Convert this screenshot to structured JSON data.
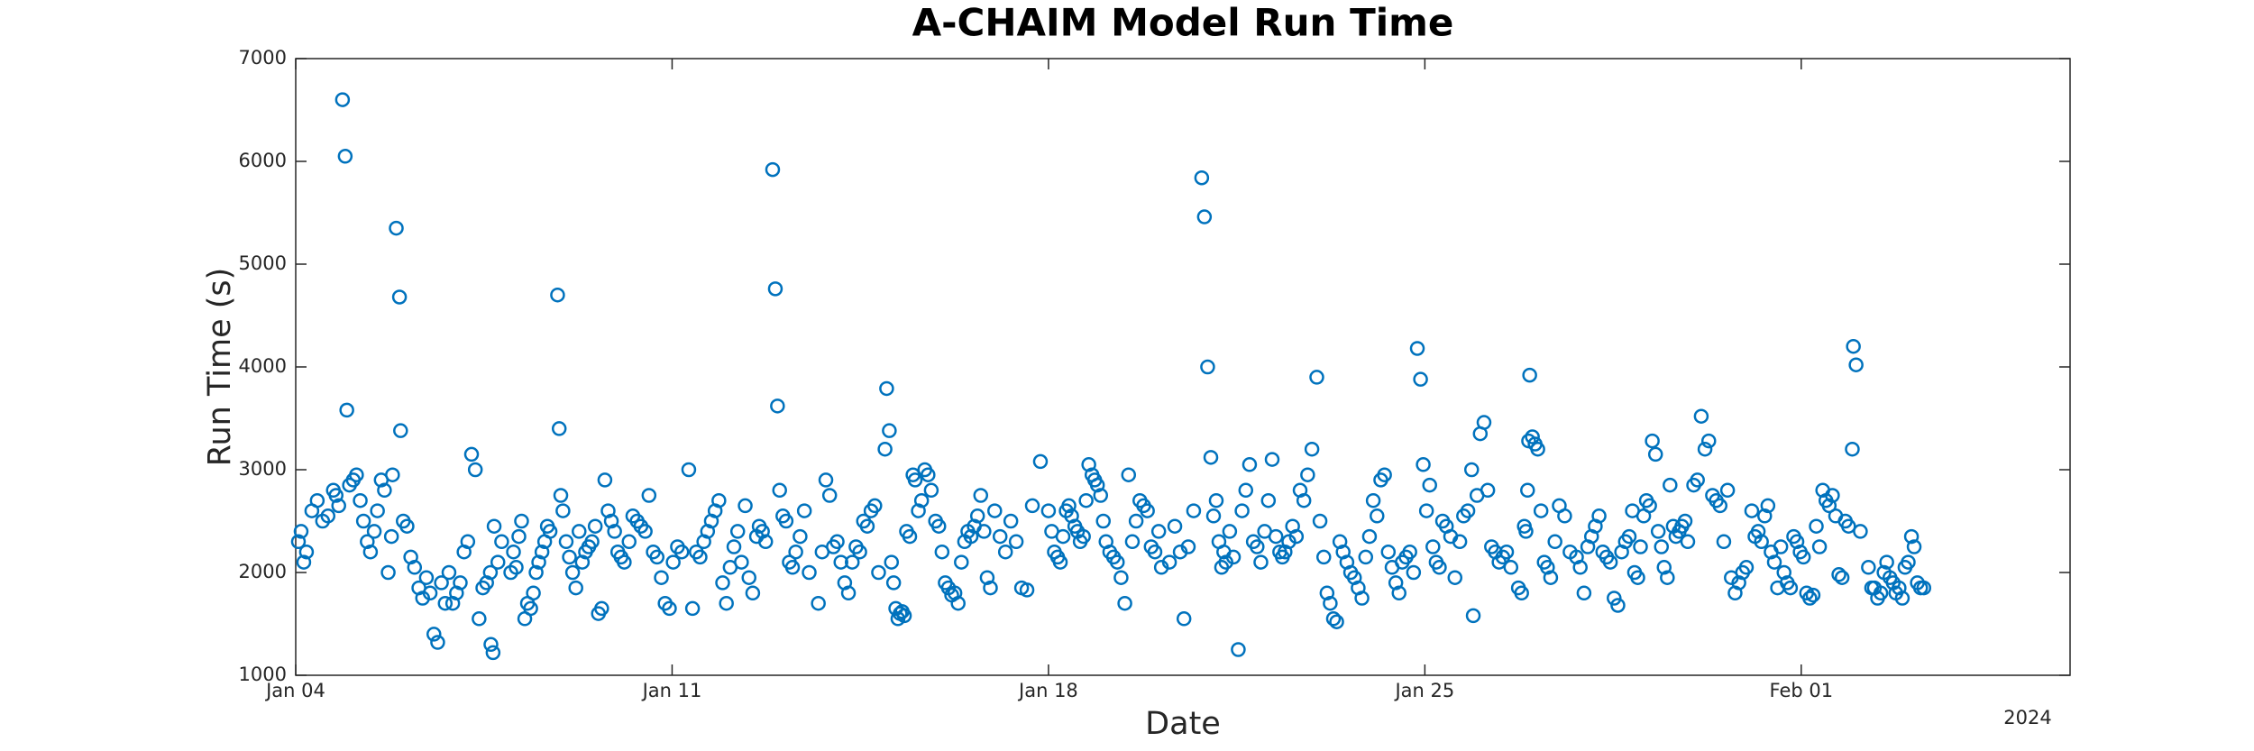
{
  "chart_data": {
    "type": "scatter",
    "title": "A-CHAIM Model Run Time",
    "x_label": "Date",
    "y_label": "Run Time (s)",
    "x_year_label": "2024",
    "color": "#0072bd",
    "xlim": [
      0,
      33
    ],
    "xticks": [
      {
        "value": 0,
        "label": "Jan 04"
      },
      {
        "value": 7,
        "label": "Jan 11"
      },
      {
        "value": 14,
        "label": "Jan 18"
      },
      {
        "value": 21,
        "label": "Jan 25"
      },
      {
        "value": 28,
        "label": "Feb 01"
      }
    ],
    "ylim": [
      1000,
      7000
    ],
    "yticks": [
      1000,
      2000,
      3000,
      4000,
      5000,
      6000,
      7000
    ],
    "grid": false,
    "x": [
      0.05,
      0.1,
      0.15,
      0.2,
      0.3,
      0.4,
      0.5,
      0.6,
      0.7,
      0.75,
      0.8,
      0.87,
      0.92,
      0.95,
      1.0,
      1.07,
      1.13,
      1.2,
      1.26,
      1.33,
      1.39,
      1.46,
      1.52,
      1.59,
      1.65,
      1.72,
      1.78,
      1.8,
      1.87,
      1.93,
      1.95,
      2.0,
      2.07,
      2.14,
      2.21,
      2.29,
      2.36,
      2.43,
      2.5,
      2.57,
      2.64,
      2.71,
      2.78,
      2.85,
      2.92,
      2.99,
      3.06,
      3.13,
      3.2,
      3.27,
      3.34,
      3.41,
      3.48,
      3.55,
      3.62,
      3.69,
      3.76,
      3.83,
      3.63,
      3.67,
      4.0,
      4.05,
      4.1,
      4.15,
      4.2,
      4.26,
      4.31,
      4.37,
      4.42,
      4.47,
      4.52,
      4.58,
      4.63,
      4.68,
      4.73,
      4.87,
      4.9,
      4.93,
      4.97,
      5.03,
      5.09,
      5.15,
      5.21,
      5.27,
      5.33,
      5.39,
      5.45,
      5.51,
      5.57,
      5.63,
      5.69,
      5.75,
      5.81,
      5.87,
      5.93,
      5.99,
      6.05,
      6.11,
      6.2,
      6.27,
      6.35,
      6.42,
      6.5,
      6.57,
      6.65,
      6.72,
      6.8,
      6.87,
      6.95,
      7.02,
      7.1,
      7.18,
      7.31,
      7.38,
      7.45,
      7.52,
      7.59,
      7.66,
      7.73,
      7.8,
      7.87,
      7.94,
      8.01,
      8.08,
      8.15,
      8.22,
      8.29,
      8.36,
      8.43,
      8.5,
      8.57,
      8.62,
      8.68,
      8.74,
      8.87,
      8.92,
      8.96,
      9.0,
      9.06,
      9.12,
      9.18,
      9.24,
      9.3,
      9.38,
      9.46,
      9.55,
      9.72,
      9.79,
      9.86,
      9.93,
      10.0,
      10.07,
      10.14,
      10.21,
      10.28,
      10.35,
      10.42,
      10.49,
      10.56,
      10.63,
      10.7,
      10.77,
      10.84,
      10.96,
      10.99,
      11.04,
      11.08,
      11.12,
      11.16,
      11.2,
      11.24,
      11.28,
      11.32,
      11.36,
      11.42,
      11.48,
      11.52,
      11.58,
      11.64,
      11.7,
      11.76,
      11.82,
      11.9,
      11.96,
      12.02,
      12.08,
      12.14,
      12.2,
      12.26,
      12.32,
      12.38,
      12.44,
      12.5,
      12.56,
      12.62,
      12.68,
      12.74,
      12.8,
      12.86,
      12.92,
      13.0,
      13.1,
      13.2,
      13.3,
      13.4,
      13.5,
      13.6,
      13.7,
      13.85,
      14.0,
      14.06,
      14.11,
      14.17,
      14.22,
      14.27,
      14.33,
      14.38,
      14.43,
      14.49,
      14.54,
      14.59,
      14.65,
      14.7,
      14.75,
      14.81,
      14.86,
      14.91,
      14.97,
      15.02,
      15.07,
      15.14,
      15.21,
      15.28,
      15.35,
      15.42,
      15.49,
      15.56,
      15.63,
      15.7,
      15.77,
      15.84,
      15.91,
      15.98,
      16.05,
      16.1,
      16.25,
      16.35,
      16.45,
      16.52,
      16.6,
      16.7,
      16.85,
      16.9,
      16.96,
      17.02,
      17.07,
      17.12,
      17.17,
      17.22,
      17.26,
      17.3,
      17.37,
      17.44,
      17.53,
      17.6,
      17.67,
      17.74,
      17.81,
      17.88,
      17.95,
      18.02,
      18.09,
      18.16,
      18.23,
      18.3,
      18.35,
      18.4,
      18.47,
      18.54,
      18.61,
      18.68,
      18.75,
      18.82,
      18.9,
      18.99,
      19.05,
      19.12,
      19.18,
      19.24,
      19.3,
      19.36,
      19.42,
      19.48,
      19.55,
      19.62,
      19.69,
      19.76,
      19.83,
      19.9,
      19.97,
      20.04,
      20.11,
      20.18,
      20.25,
      20.32,
      20.39,
      20.46,
      20.52,
      20.58,
      20.65,
      20.72,
      20.79,
      20.86,
      20.92,
      20.97,
      21.03,
      21.09,
      21.15,
      21.21,
      21.27,
      21.33,
      21.4,
      21.48,
      21.56,
      21.65,
      21.72,
      21.8,
      21.87,
      21.9,
      21.97,
      22.03,
      22.1,
      22.17,
      22.24,
      22.31,
      22.38,
      22.45,
      22.52,
      22.6,
      22.74,
      22.8,
      22.85,
      22.88,
      22.91,
      22.93,
      22.95,
      23.0,
      23.05,
      23.1,
      23.16,
      23.22,
      23.28,
      23.34,
      23.42,
      23.5,
      23.6,
      23.7,
      23.82,
      23.89,
      23.96,
      24.03,
      24.1,
      24.17,
      24.24,
      24.31,
      24.38,
      24.45,
      24.52,
      24.59,
      24.66,
      24.73,
      24.8,
      24.86,
      24.9,
      24.96,
      25.01,
      25.07,
      25.12,
      25.18,
      25.23,
      25.29,
      25.34,
      25.4,
      25.45,
      25.51,
      25.56,
      25.62,
      25.67,
      25.73,
      25.78,
      25.84,
      25.89,
      26.0,
      26.07,
      26.14,
      26.21,
      26.28,
      26.35,
      26.42,
      26.49,
      26.56,
      26.63,
      26.7,
      26.77,
      26.84,
      26.91,
      26.98,
      27.08,
      27.14,
      27.2,
      27.26,
      27.32,
      27.38,
      27.44,
      27.5,
      27.56,
      27.62,
      27.68,
      27.74,
      27.8,
      27.86,
      27.92,
      27.98,
      28.04,
      28.1,
      28.16,
      28.22,
      28.28,
      28.34,
      28.4,
      28.46,
      28.52,
      28.58,
      28.64,
      28.7,
      28.76,
      28.82,
      28.88,
      28.95,
      28.97,
      29.02,
      29.1,
      29.25,
      29.31,
      29.36,
      29.42,
      29.48,
      29.54,
      29.59,
      29.65,
      29.71,
      29.76,
      29.82,
      29.88,
      29.93,
      29.99,
      30.05,
      30.1,
      30.16,
      30.22,
      30.28
    ],
    "values": [
      2300,
      2400,
      2100,
      2200,
      2600,
      2700,
      2500,
      2550,
      2800,
      2750,
      2650,
      6600,
      6050,
      3580,
      2850,
      2900,
      2950,
      2700,
      2500,
      2300,
      2200,
      2400,
      2600,
      2900,
      2800,
      2000,
      2350,
      2950,
      5350,
      4680,
      3380,
      2500,
      2450,
      2150,
      2050,
      1850,
      1750,
      1950,
      1800,
      1400,
      1320,
      1900,
      1700,
      2000,
      1700,
      1800,
      1900,
      2200,
      2300,
      3150,
      3000,
      1550,
      1850,
      1900,
      2000,
      2450,
      2100,
      2300,
      1300,
      1220,
      2000,
      2200,
      2050,
      2350,
      2500,
      1550,
      1700,
      1650,
      1800,
      2000,
      2100,
      2200,
      2300,
      2450,
      2400,
      4700,
      3400,
      2750,
      2600,
      2300,
      2150,
      2000,
      1850,
      2400,
      2100,
      2200,
      2250,
      2300,
      2450,
      1600,
      1650,
      2900,
      2600,
      2500,
      2400,
      2200,
      2150,
      2100,
      2300,
      2550,
      2500,
      2450,
      2400,
      2750,
      2200,
      2150,
      1950,
      1700,
      1650,
      2100,
      2250,
      2200,
      3000,
      1650,
      2200,
      2150,
      2300,
      2400,
      2500,
      2600,
      2700,
      1900,
      1700,
      2050,
      2250,
      2400,
      2100,
      2650,
      1950,
      1800,
      2350,
      2450,
      2400,
      2300,
      5920,
      4760,
      3620,
      2800,
      2550,
      2500,
      2100,
      2050,
      2200,
      2350,
      2600,
      2000,
      1700,
      2200,
      2900,
      2750,
      2250,
      2300,
      2100,
      1900,
      1800,
      2100,
      2250,
      2200,
      2500,
      2450,
      2600,
      2650,
      2000,
      3200,
      3790,
      3380,
      2100,
      1900,
      1650,
      1550,
      1600,
      1620,
      1580,
      2400,
      2350,
      2950,
      2900,
      2600,
      2700,
      3000,
      2950,
      2800,
      2500,
      2450,
      2200,
      1900,
      1850,
      1780,
      1800,
      1700,
      2100,
      2300,
      2400,
      2350,
      2450,
      2550,
      2750,
      2400,
      1950,
      1850,
      2600,
      2350,
      2200,
      2500,
      2300,
      1850,
      1830,
      2650,
      3080,
      2600,
      2400,
      2200,
      2150,
      2100,
      2350,
      2600,
      2650,
      2550,
      2450,
      2400,
      2300,
      2350,
      2700,
      3050,
      2950,
      2900,
      2850,
      2750,
      2500,
      2300,
      2200,
      2150,
      2100,
      1950,
      1700,
      2950,
      2300,
      2500,
      2700,
      2650,
      2600,
      2250,
      2200,
      2400,
      2050,
      2100,
      2450,
      2200,
      1550,
      2250,
      2600,
      5840,
      5460,
      4000,
      3120,
      2550,
      2700,
      2300,
      2050,
      2200,
      2100,
      2400,
      2150,
      1250,
      2600,
      2800,
      3050,
      2300,
      2250,
      2100,
      2400,
      2700,
      3100,
      2350,
      2200,
      2150,
      2200,
      2300,
      2450,
      2350,
      2800,
      2700,
      2950,
      3200,
      3900,
      2500,
      2150,
      1800,
      1700,
      1550,
      1520,
      2300,
      2200,
      2100,
      2000,
      1950,
      1850,
      1750,
      2150,
      2350,
      2700,
      2550,
      2900,
      2950,
      2200,
      2050,
      1900,
      1800,
      2100,
      2150,
      2200,
      2000,
      4180,
      3880,
      3050,
      2600,
      2850,
      2250,
      2100,
      2050,
      2500,
      2450,
      2350,
      1950,
      2300,
      2550,
      2600,
      3000,
      1580,
      2750,
      3350,
      3460,
      2800,
      2250,
      2200,
      2100,
      2150,
      2200,
      2050,
      1850,
      1800,
      2450,
      2400,
      2800,
      3280,
      3920,
      3320,
      3250,
      3200,
      2600,
      2100,
      2050,
      1950,
      2300,
      2650,
      2550,
      2200,
      2150,
      2050,
      1800,
      2250,
      2350,
      2450,
      2550,
      2200,
      2150,
      2100,
      1750,
      1680,
      2200,
      2300,
      2350,
      2600,
      2000,
      1950,
      2250,
      2550,
      2700,
      2650,
      3280,
      3150,
      2400,
      2250,
      2050,
      1950,
      2850,
      2450,
      2350,
      2400,
      2450,
      2500,
      2300,
      2850,
      2900,
      3520,
      3200,
      3280,
      2750,
      2700,
      2650,
      2300,
      2800,
      1950,
      1800,
      1900,
      2000,
      2050,
      2600,
      2350,
      2400,
      2300,
      2550,
      2650,
      2200,
      2100,
      1850,
      2250,
      2000,
      1900,
      1850,
      2350,
      2300,
      2200,
      2150,
      1800,
      1750,
      1780,
      2450,
      2250,
      2800,
      2700,
      2650,
      2750,
      2550,
      1980,
      1950,
      2500,
      2450,
      3200,
      4200,
      4020,
      2400,
      2050,
      1850,
      1850,
      1750,
      1800,
      2000,
      2100,
      1950,
      1900,
      1800,
      1850,
      1750,
      2050,
      2100,
      2350,
      2250,
      1900,
      1850,
      1850
    ]
  }
}
